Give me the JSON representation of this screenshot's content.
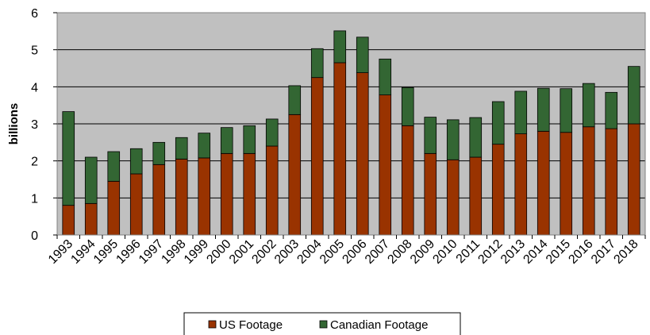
{
  "chart_data": {
    "type": "bar",
    "stacked": true,
    "title": "",
    "xlabel": "",
    "ylabel": "billions",
    "ylim": [
      0,
      6
    ],
    "yticks": [
      0,
      1,
      2,
      3,
      4,
      5,
      6
    ],
    "grid": true,
    "legend_position": "bottom",
    "plot_background": "#c0c0c0",
    "categories": [
      "1993",
      "1994",
      "1995",
      "1996",
      "1997",
      "1998",
      "1999",
      "2000",
      "2001",
      "2002",
      "2003",
      "2004",
      "2005",
      "2006",
      "2007",
      "2008",
      "2009",
      "2010",
      "2011",
      "2012",
      "2013",
      "2014",
      "2015",
      "2016",
      "2017",
      "2018"
    ],
    "series": [
      {
        "name": "US Footage",
        "color": "#993300",
        "values": [
          0.8,
          0.85,
          1.45,
          1.65,
          1.9,
          2.05,
          2.08,
          2.2,
          2.2,
          2.4,
          3.25,
          4.25,
          4.65,
          4.38,
          3.78,
          2.95,
          2.2,
          2.03,
          2.1,
          2.45,
          2.73,
          2.8,
          2.77,
          2.92,
          2.87,
          3.0
        ]
      },
      {
        "name": "Canadian Footage",
        "color": "#336633",
        "values": [
          2.53,
          1.25,
          0.8,
          0.68,
          0.6,
          0.58,
          0.67,
          0.7,
          0.75,
          0.73,
          0.78,
          0.78,
          0.86,
          0.96,
          0.97,
          1.03,
          0.98,
          1.08,
          1.07,
          1.15,
          1.15,
          1.16,
          1.18,
          1.17,
          0.98,
          1.55
        ]
      }
    ]
  }
}
